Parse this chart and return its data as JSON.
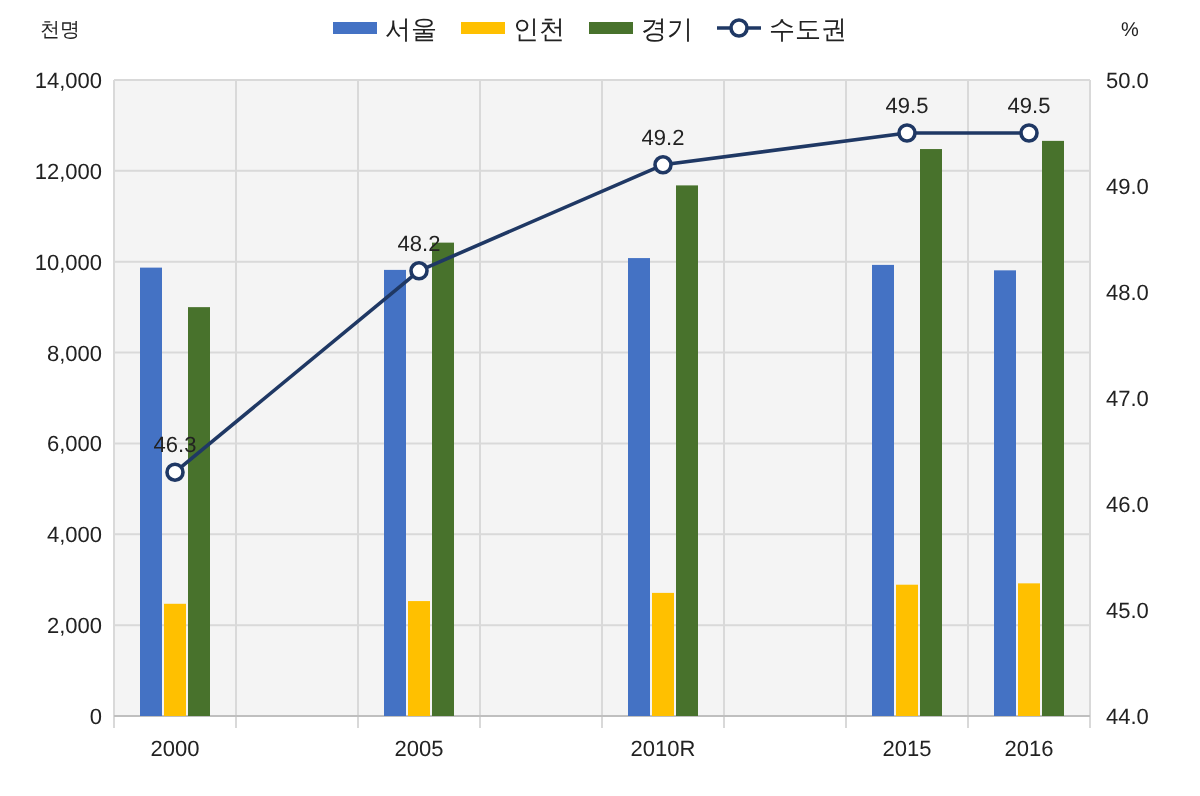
{
  "chart_data": {
    "type": "bar",
    "categories": [
      "2000",
      null,
      "2005",
      null,
      "2010R",
      null,
      "2015",
      "2016"
    ],
    "ylabel": "천명",
    "y2label": "%",
    "ylim": [
      0,
      14000
    ],
    "yticks": [
      {
        "value": 0,
        "label": "0"
      },
      {
        "value": 2000,
        "label": "2,000"
      },
      {
        "value": 4000,
        "label": "4,000"
      },
      {
        "value": 6000,
        "label": "6,000"
      },
      {
        "value": 8000,
        "label": "8,000"
      },
      {
        "value": 10000,
        "label": "10,000"
      },
      {
        "value": 12000,
        "label": "12,000"
      },
      {
        "value": 14000,
        "label": "14,000"
      }
    ],
    "y2lim": [
      44,
      50
    ],
    "y2ticks": [
      {
        "value": 44,
        "label": "44.0"
      },
      {
        "value": 45,
        "label": "45.0"
      },
      {
        "value": 46,
        "label": "46.0"
      },
      {
        "value": 47,
        "label": "47.0"
      },
      {
        "value": 48,
        "label": "48.0"
      },
      {
        "value": 49,
        "label": "49.0"
      },
      {
        "value": 50,
        "label": "50.0"
      }
    ],
    "grid": true,
    "legend": "top",
    "series": [
      {
        "name": "서울",
        "color": "#4472c4",
        "values": [
          9870,
          null,
          9820,
          null,
          10080,
          null,
          9930,
          9810
        ]
      },
      {
        "name": "인천",
        "color": "#ffc000",
        "values": [
          2470,
          null,
          2530,
          null,
          2710,
          null,
          2890,
          2920
        ]
      },
      {
        "name": "경기",
        "color": "#48722c",
        "values": [
          9000,
          null,
          10420,
          null,
          11680,
          null,
          12480,
          12660
        ]
      },
      {
        "name": "수도권",
        "type": "line",
        "axis": "y2",
        "marker": "circle",
        "color": "#1f3864",
        "values": [
          46.3,
          null,
          48.2,
          null,
          49.2,
          null,
          49.5,
          49.5
        ],
        "value_labels": [
          "46.3",
          null,
          "48.2",
          null,
          "49.2",
          null,
          "49.5",
          "49.5"
        ]
      }
    ]
  }
}
